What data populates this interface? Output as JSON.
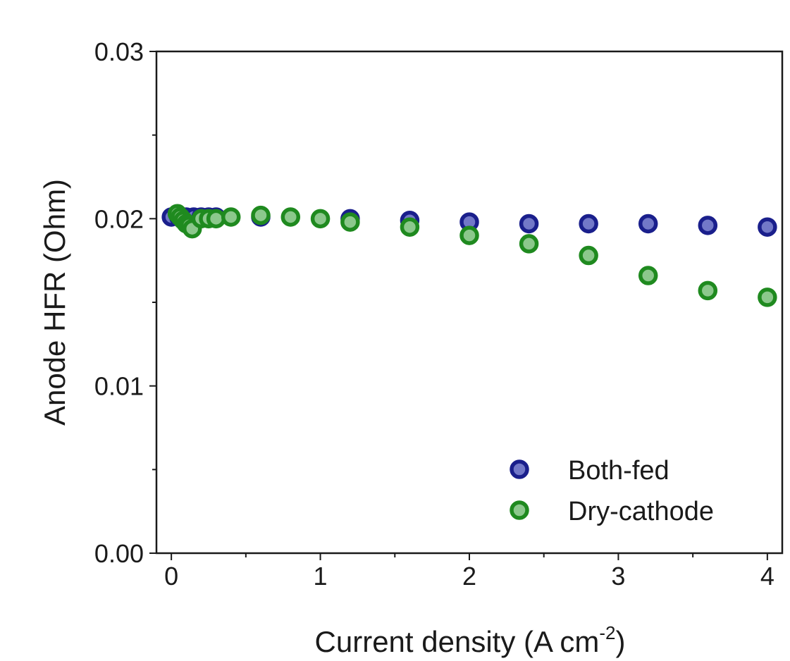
{
  "chart_data": {
    "type": "scatter",
    "title": "",
    "xlabel": "Current density (A cm",
    "xlabel_sup": "-2",
    "xlabel_suffix": ")",
    "ylabel": "Anode HFR (Ohm)",
    "xlim": [
      -0.1,
      4.1
    ],
    "ylim": [
      0,
      0.03
    ],
    "xticks": [
      0,
      1,
      2,
      3,
      4
    ],
    "xtick_labels": [
      "0",
      "1",
      "2",
      "3",
      "4"
    ],
    "yticks": [
      0,
      0.01,
      0.02,
      0.03
    ],
    "ytick_labels": [
      "0.00",
      "0.01",
      "0.02",
      "0.03"
    ],
    "x_minor_ticks": [
      0.5,
      1.5,
      2.5,
      3.5
    ],
    "y_minor_ticks": [
      0.005,
      0.015,
      0.025
    ],
    "grid": false,
    "legend_position": "bottom-right",
    "series": [
      {
        "name": "Both-fed",
        "color": "#1a1f8c",
        "inner_color": "#7278c8",
        "x": [
          0.0,
          0.05,
          0.1,
          0.15,
          0.2,
          0.25,
          0.3,
          0.6,
          1.2,
          1.6,
          2.0,
          2.4,
          2.8,
          3.2,
          3.6,
          4.0
        ],
        "y": [
          0.0201,
          0.0201,
          0.0201,
          0.0201,
          0.0201,
          0.0201,
          0.0201,
          0.0201,
          0.02,
          0.0199,
          0.0198,
          0.0197,
          0.0197,
          0.0197,
          0.0196,
          0.0195
        ]
      },
      {
        "name": "Dry-cathode",
        "color": "#1f8a1f",
        "inner_color": "#8cc88c",
        "x": [
          0.04,
          0.06,
          0.08,
          0.1,
          0.12,
          0.14,
          0.2,
          0.25,
          0.3,
          0.4,
          0.6,
          0.8,
          1.0,
          1.2,
          1.6,
          2.0,
          2.4,
          2.8,
          3.2,
          3.6,
          4.0
        ],
        "y": [
          0.0203,
          0.0201,
          0.0199,
          0.0197,
          0.0196,
          0.0194,
          0.02,
          0.02,
          0.02,
          0.0201,
          0.0202,
          0.0201,
          0.02,
          0.0198,
          0.0195,
          0.019,
          0.0185,
          0.0178,
          0.0166,
          0.0157,
          0.0153
        ]
      }
    ]
  }
}
